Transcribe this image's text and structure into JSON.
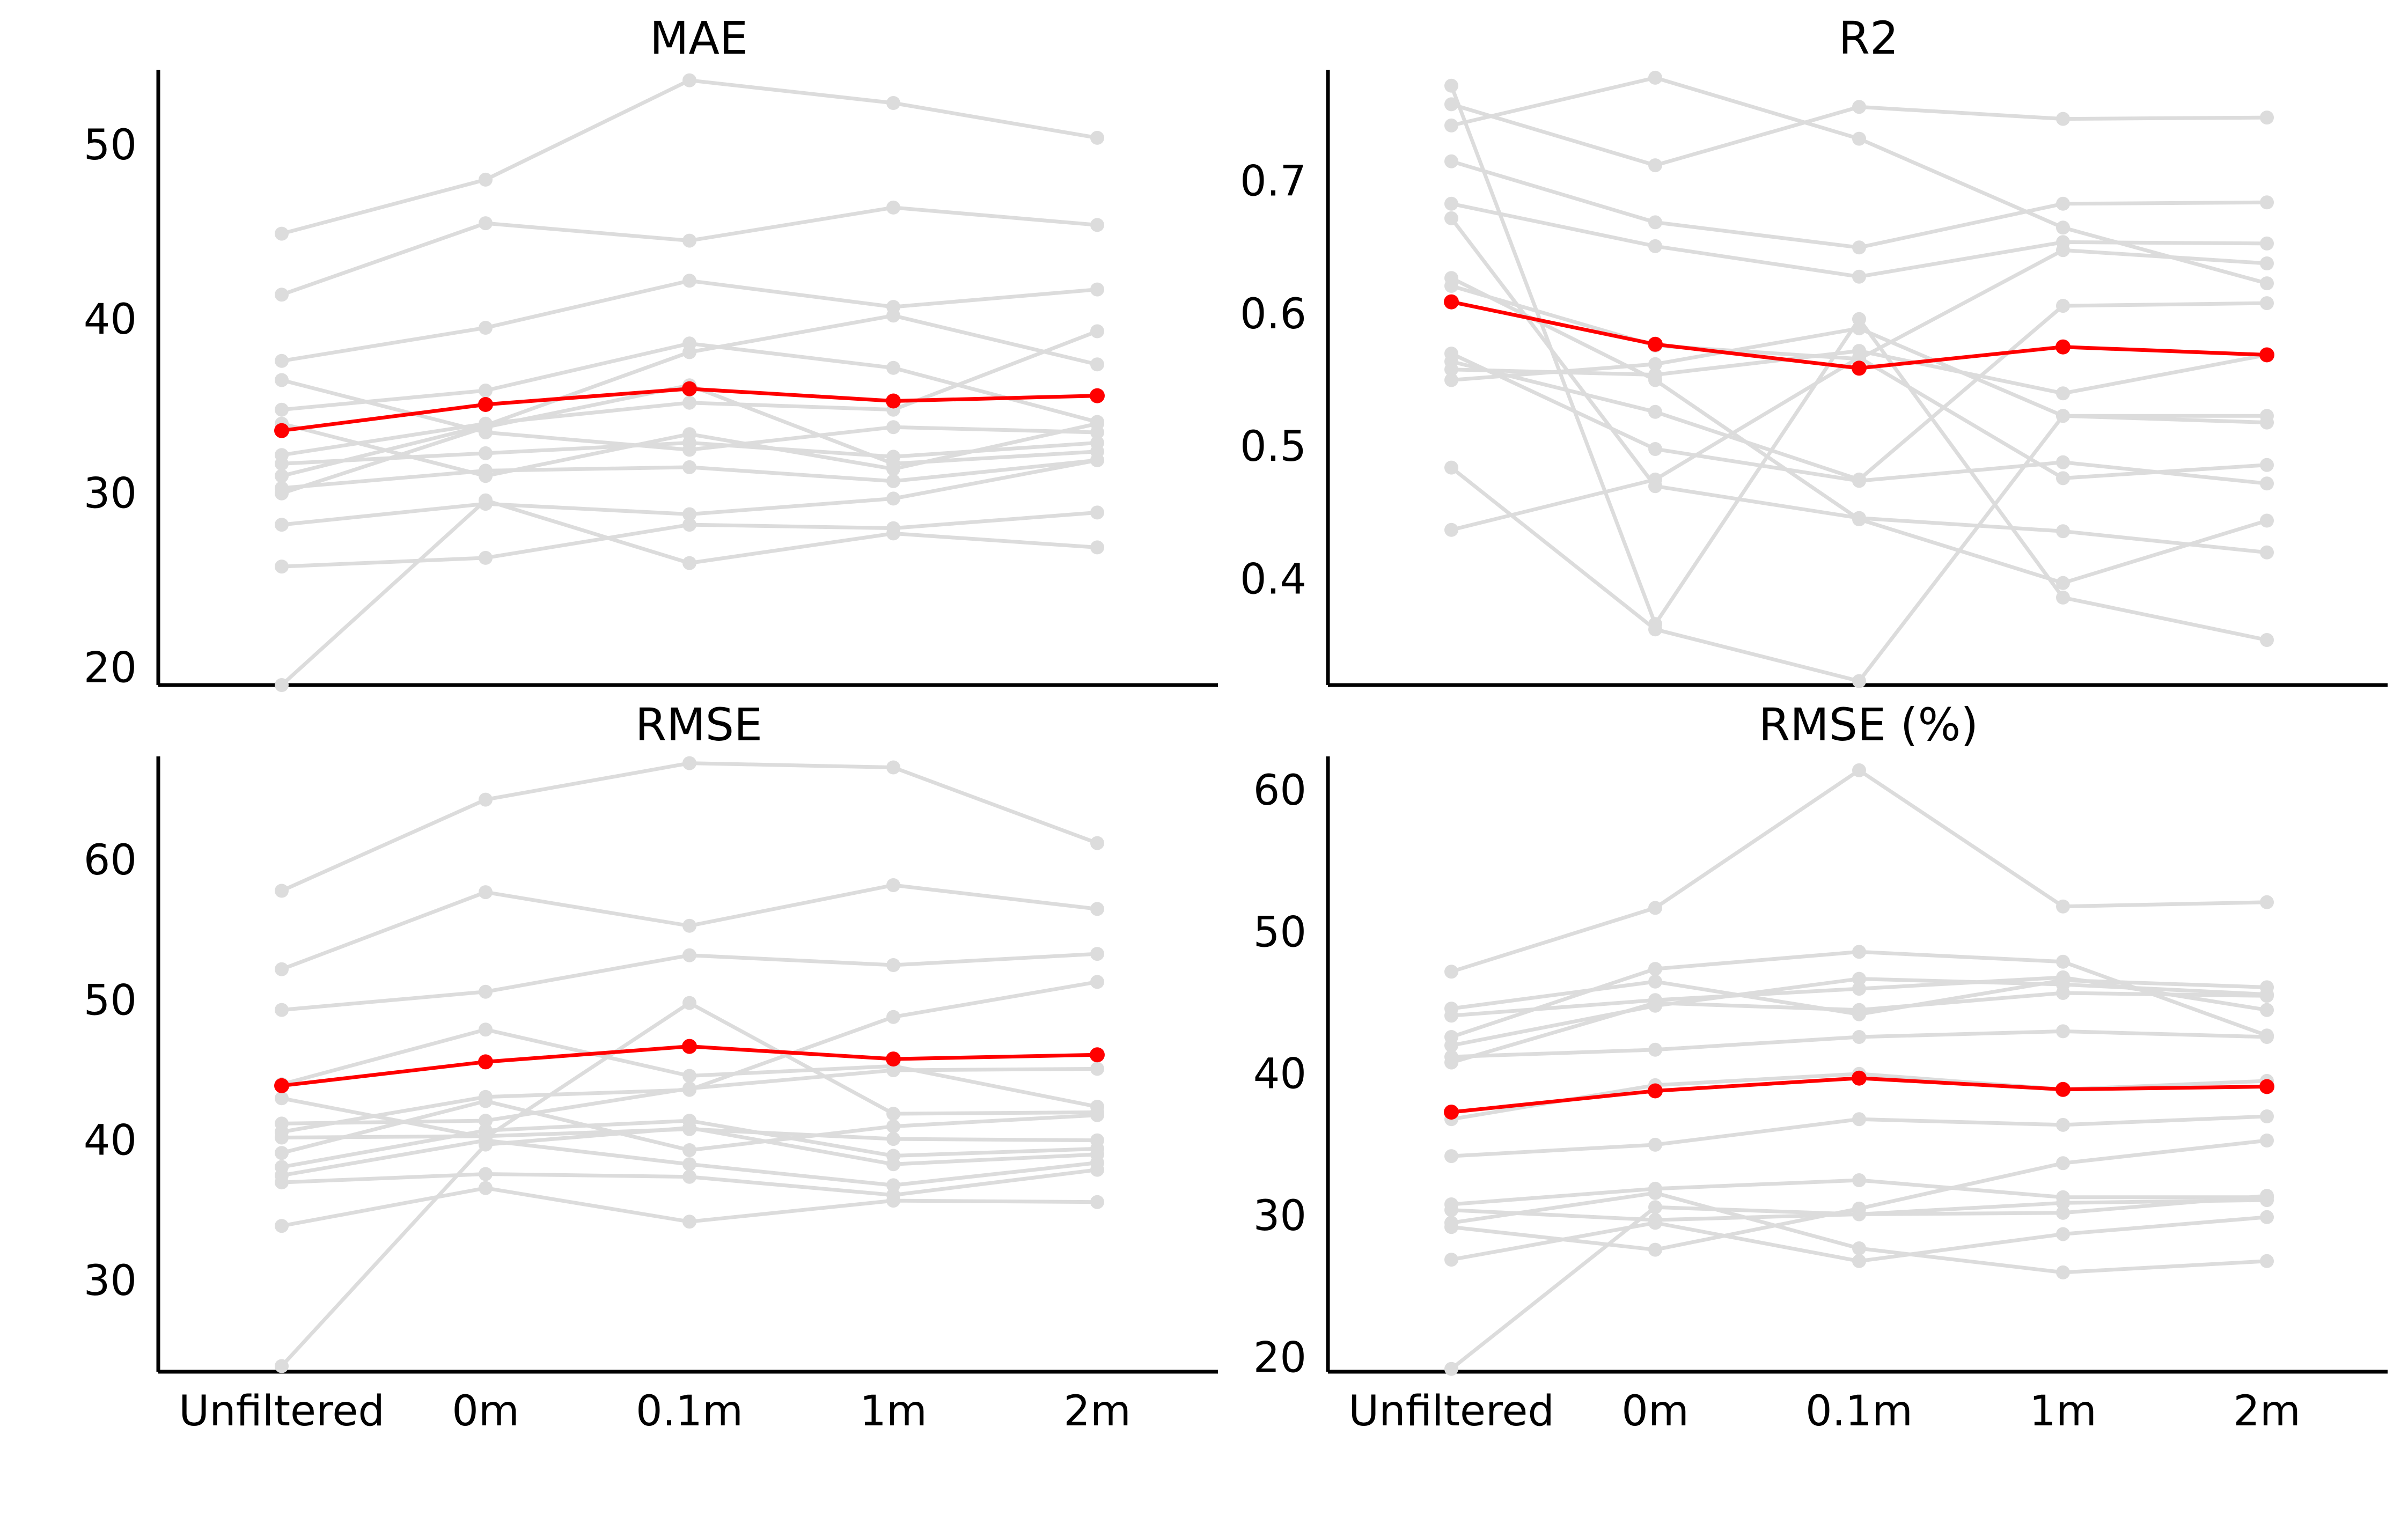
{
  "colors": {
    "highlight": "#ff0000",
    "background_series": "#dcdcdc",
    "axis": "#000000"
  },
  "x_categories": [
    "Unfiltered",
    "0m",
    "0.1m",
    "1m",
    "2m"
  ],
  "chart_data": [
    {
      "type": "line",
      "title": "MAE",
      "xlabel": "",
      "ylabel": "",
      "categories": [
        "Unfiltered",
        "0m",
        "0.1m",
        "1m",
        "2m"
      ],
      "ylim": [
        19,
        54
      ],
      "yticks": [
        20,
        30,
        40,
        50
      ],
      "ytick_labels": [
        "20",
        "30",
        "40",
        "50"
      ],
      "show_xtick_labels": false,
      "grid": false,
      "highlight": {
        "color": "#ff0000",
        "values": [
          33.6,
          35.1,
          36.0,
          35.3,
          35.6
        ]
      },
      "background_color": "#dcdcdc",
      "series": [
        {
          "values": [
            44.9,
            48.0,
            53.7,
            52.4,
            50.4
          ]
        },
        {
          "values": [
            41.4,
            45.5,
            44.5,
            46.4,
            45.4
          ]
        },
        {
          "values": [
            37.6,
            39.5,
            42.2,
            40.7,
            41.7
          ]
        },
        {
          "values": [
            36.5,
            33.5,
            32.5,
            33.8,
            33.5
          ]
        },
        {
          "values": [
            34.8,
            35.9,
            38.6,
            37.2,
            34.1
          ]
        },
        {
          "values": [
            34.0,
            31.0,
            33.4,
            31.4,
            34.0
          ]
        },
        {
          "values": [
            32.2,
            34.0,
            35.2,
            34.8,
            39.3
          ]
        },
        {
          "values": [
            31.7,
            32.3,
            32.9,
            32.1,
            32.9
          ]
        },
        {
          "values": [
            31.0,
            33.9,
            38.1,
            40.2,
            37.4
          ]
        },
        {
          "values": [
            30.3,
            31.3,
            31.5,
            30.7,
            31.9
          ]
        },
        {
          "values": [
            30.0,
            33.8,
            36.2,
            31.7,
            32.4
          ]
        },
        {
          "values": [
            28.2,
            29.4,
            28.8,
            29.7,
            31.9
          ]
        },
        {
          "values": [
            25.8,
            26.3,
            28.2,
            28.0,
            28.9
          ]
        },
        {
          "values": [
            19.0,
            29.6,
            26.0,
            27.7,
            26.9
          ]
        }
      ]
    },
    {
      "type": "line",
      "title": "R2",
      "xlabel": "",
      "ylabel": "",
      "categories": [
        "Unfiltered",
        "0m",
        "0.1m",
        "1m",
        "2m"
      ],
      "ylim": [
        0.32,
        0.78
      ],
      "yticks": [
        0.4,
        0.5,
        0.6,
        0.7
      ],
      "ytick_labels": [
        "0.4",
        "0.5",
        "0.6",
        "0.7"
      ],
      "show_xtick_labels": false,
      "grid": false,
      "highlight": {
        "color": "#ff0000",
        "values": [
          0.609,
          0.577,
          0.559,
          0.575,
          0.569
        ]
      },
      "background_color": "#dcdcdc",
      "series": [
        {
          "values": [
            0.772,
            0.366,
            0.596,
            0.386,
            0.354
          ]
        },
        {
          "values": [
            0.758,
            0.712,
            0.756,
            0.747,
            0.748
          ]
        },
        {
          "values": [
            0.742,
            0.778,
            0.732,
            0.665,
            0.623
          ]
        },
        {
          "values": [
            0.715,
            0.669,
            0.65,
            0.683,
            0.684
          ]
        },
        {
          "values": [
            0.683,
            0.651,
            0.628,
            0.654,
            0.653
          ]
        },
        {
          "values": [
            0.672,
            0.47,
            0.446,
            0.436,
            0.42
          ]
        },
        {
          "values": [
            0.627,
            0.55,
            0.445,
            0.397,
            0.444
          ]
        },
        {
          "values": [
            0.621,
            0.576,
            0.566,
            0.648,
            0.638
          ]
        },
        {
          "values": [
            0.57,
            0.498,
            0.474,
            0.488,
            0.472
          ]
        },
        {
          "values": [
            0.564,
            0.526,
            0.475,
            0.606,
            0.608
          ]
        },
        {
          "values": [
            0.558,
            0.554,
            0.572,
            0.54,
            0.569
          ]
        },
        {
          "values": [
            0.55,
            0.562,
            0.589,
            0.523,
            0.523
          ]
        },
        {
          "values": [
            0.484,
            0.362,
            0.323,
            0.523,
            0.518
          ]
        },
        {
          "values": [
            0.437,
            0.475,
            0.567,
            0.476,
            0.486
          ]
        }
      ]
    },
    {
      "type": "line",
      "title": "RMSE",
      "xlabel": "",
      "ylabel": "",
      "categories": [
        "Unfiltered",
        "0m",
        "0.1m",
        "1m",
        "2m"
      ],
      "ylim": [
        23.5,
        67
      ],
      "yticks": [
        30,
        40,
        50,
        60
      ],
      "ytick_labels": [
        "30",
        "40",
        "50",
        "60"
      ],
      "show_xtick_labels": true,
      "grid": false,
      "highlight": {
        "color": "#ff0000",
        "values": [
          43.9,
          45.6,
          46.7,
          45.8,
          46.1
        ]
      },
      "background_color": "#dcdcdc",
      "series": [
        {
          "values": [
            57.8,
            64.3,
            66.9,
            66.6,
            61.2
          ]
        },
        {
          "values": [
            52.2,
            57.7,
            55.3,
            58.2,
            56.5
          ]
        },
        {
          "values": [
            49.3,
            50.6,
            53.2,
            52.5,
            53.3
          ]
        },
        {
          "values": [
            44.0,
            47.9,
            44.6,
            45.3,
            42.4
          ]
        },
        {
          "values": [
            43.0,
            40.2,
            49.8,
            41.9,
            42.0
          ]
        },
        {
          "values": [
            41.2,
            41.4,
            43.7,
            45.0,
            45.1
          ]
        },
        {
          "values": [
            40.6,
            43.1,
            43.6,
            48.8,
            51.3
          ]
        },
        {
          "values": [
            40.2,
            40.3,
            40.8,
            40.1,
            40.0
          ]
        },
        {
          "values": [
            39.1,
            42.8,
            39.3,
            41.0,
            41.8
          ]
        },
        {
          "values": [
            38.1,
            40.7,
            41.4,
            38.9,
            39.4
          ]
        },
        {
          "values": [
            37.5,
            40.0,
            38.3,
            36.8,
            38.4
          ]
        },
        {
          "values": [
            37.0,
            37.6,
            37.4,
            36.1,
            37.9
          ]
        },
        {
          "values": [
            33.9,
            36.6,
            34.2,
            35.7,
            35.6
          ]
        },
        {
          "values": [
            23.9,
            39.7,
            40.9,
            38.3,
            39.0
          ]
        }
      ]
    },
    {
      "type": "line",
      "title": "RMSE (%)",
      "xlabel": "",
      "ylabel": "",
      "categories": [
        "Unfiltered",
        "0m",
        "0.1m",
        "1m",
        "2m"
      ],
      "ylim": [
        19,
        62
      ],
      "yticks": [
        20,
        30,
        40,
        50,
        60
      ],
      "ytick_labels": [
        "20",
        "30",
        "40",
        "50",
        "60"
      ],
      "show_xtick_labels": true,
      "grid": false,
      "highlight": {
        "color": "#ff0000",
        "values": [
          37.3,
          38.8,
          39.7,
          38.9,
          39.1
        ]
      },
      "background_color": "#dcdcdc",
      "series": [
        {
          "values": [
            47.2,
            51.7,
            61.4,
            51.8,
            52.1
          ]
        },
        {
          "values": [
            44.6,
            46.5,
            44.2,
            46.6,
            46.1
          ]
        },
        {
          "values": [
            44.1,
            45.2,
            46.0,
            46.8,
            44.5
          ]
        },
        {
          "values": [
            42.6,
            47.4,
            48.6,
            47.9,
            42.7
          ]
        },
        {
          "values": [
            42.0,
            44.8,
            46.7,
            46.3,
            45.6
          ]
        },
        {
          "values": [
            41.2,
            41.7,
            42.6,
            43.0,
            42.6
          ]
        },
        {
          "values": [
            40.8,
            45.0,
            44.5,
            45.7,
            45.5
          ]
        },
        {
          "values": [
            36.8,
            39.2,
            40.0,
            38.9,
            39.5
          ]
        },
        {
          "values": [
            34.2,
            35.0,
            36.8,
            36.4,
            37.0
          ]
        },
        {
          "values": [
            30.8,
            31.9,
            32.5,
            31.3,
            31.3
          ]
        },
        {
          "values": [
            30.4,
            29.7,
            30.1,
            30.9,
            31.1
          ]
        },
        {
          "values": [
            29.5,
            31.6,
            27.7,
            26.0,
            26.8
          ]
        },
        {
          "values": [
            29.2,
            27.6,
            30.5,
            33.7,
            35.3
          ]
        },
        {
          "values": [
            26.9,
            29.5,
            26.8,
            28.7,
            29.9
          ]
        },
        {
          "values": [
            19.2,
            30.6,
            30.1,
            30.2,
            31.4
          ]
        }
      ]
    }
  ]
}
